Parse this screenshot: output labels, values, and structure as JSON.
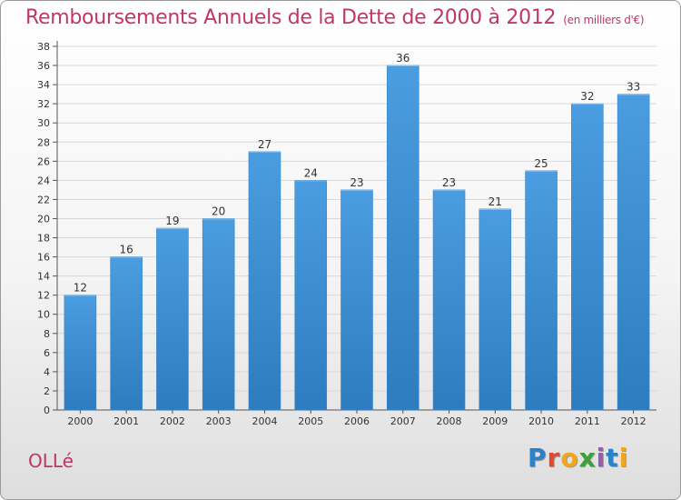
{
  "header": {
    "title": "Remboursements Annuels de la Dette de 2000 à 2012",
    "unit": "(en milliers d'€)"
  },
  "footer": {
    "commune": "OLLé",
    "logo_letters": [
      "P",
      "r",
      "o",
      "x",
      "i",
      "t",
      "i"
    ],
    "logo_colors": [
      "#2c82c9",
      "#e2492f",
      "#f3a61d",
      "#3da13b",
      "#9a59b5",
      "#2c82c9",
      "#f3a61d"
    ]
  },
  "colors": {
    "bar": "#4a9de0",
    "bar_dark": "#2e7cc0",
    "grid": "#d8d8d8"
  },
  "chart_data": {
    "type": "bar",
    "categories": [
      "2000",
      "2001",
      "2002",
      "2003",
      "2004",
      "2005",
      "2006",
      "2007",
      "2008",
      "2009",
      "2010",
      "2011",
      "2012"
    ],
    "values": [
      12,
      16,
      19,
      20,
      27,
      24,
      23,
      36,
      23,
      21,
      25,
      32,
      33
    ],
    "ylim": [
      0,
      38
    ],
    "yticks": [
      0,
      2,
      4,
      6,
      8,
      10,
      12,
      14,
      16,
      18,
      20,
      22,
      24,
      26,
      28,
      30,
      32,
      34,
      36,
      38
    ],
    "grid": true
  }
}
